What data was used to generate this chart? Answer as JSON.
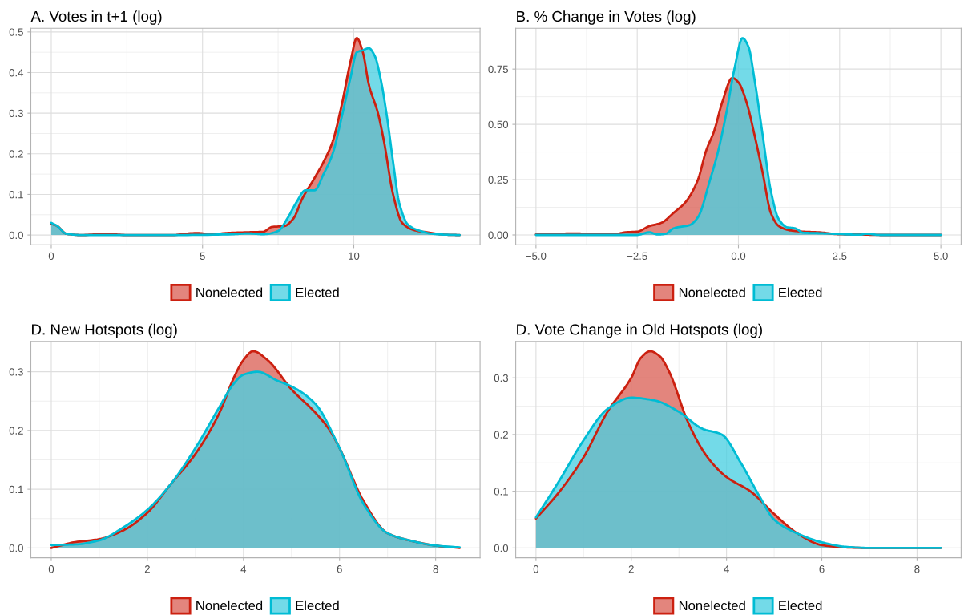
{
  "chart_data": [
    {
      "type": "area",
      "title": "A. Votes in t+1 (log)",
      "xlim": [
        -0.675,
        14.175
      ],
      "xticks": [
        0,
        5,
        10
      ],
      "ylim": [
        -0.024,
        0.509
      ],
      "yticks": [
        {
          "value": 0,
          "label": "0.0"
        },
        0.1,
        0.2,
        0.3,
        0.4,
        0.5
      ],
      "grid": true,
      "legend": "bottom",
      "series": [
        {
          "name": "Nonelected",
          "color": "#cc2010",
          "x": [
            0,
            0.2,
            0.5,
            1,
            1.8,
            2.5,
            4,
            4.8,
            5.3,
            5.8,
            6.5,
            7,
            7.3,
            7.7,
            8,
            8.3,
            8.7,
            9,
            9.3,
            9.6,
            9.9,
            10.1,
            10.3,
            10.5,
            10.8,
            11,
            11.3,
            11.6,
            12,
            12.5,
            13,
            13.5
          ],
          "values": [
            0.028,
            0.022,
            0.003,
            0,
            0.003,
            0,
            0,
            0.005,
            0.002,
            0.005,
            0.007,
            0.008,
            0.02,
            0.022,
            0.04,
            0.09,
            0.14,
            0.18,
            0.23,
            0.32,
            0.43,
            0.485,
            0.45,
            0.37,
            0.3,
            0.23,
            0.1,
            0.03,
            0.012,
            0.006,
            0.001,
            0
          ]
        },
        {
          "name": "Elected",
          "color": "#00bcd4",
          "x": [
            0,
            0.2,
            0.5,
            1,
            4,
            6,
            6.5,
            7,
            7.5,
            7.8,
            8.1,
            8.4,
            8.7,
            9,
            9.3,
            9.6,
            9.9,
            10.1,
            10.3,
            10.5,
            10.7,
            10.9,
            11.1,
            11.3,
            11.5,
            11.8,
            12.2,
            12.6,
            13,
            13.5
          ],
          "values": [
            0.03,
            0.022,
            0.003,
            0,
            0,
            0.002,
            0.004,
            0.002,
            0.01,
            0.04,
            0.08,
            0.11,
            0.11,
            0.15,
            0.2,
            0.29,
            0.39,
            0.45,
            0.455,
            0.46,
            0.44,
            0.38,
            0.29,
            0.18,
            0.08,
            0.025,
            0.01,
            0.003,
            0.001,
            0
          ]
        }
      ]
    },
    {
      "type": "area",
      "title": "B. % Change in Votes (log)",
      "xlim": [
        -5.5,
        5.5
      ],
      "xticks": [
        {
          "value": -5,
          "label": "−5.0"
        },
        {
          "value": -2.5,
          "label": "−2.5"
        },
        {
          "value": 0,
          "label": "0.0"
        },
        {
          "value": 2.5,
          "label": "2.5"
        },
        {
          "value": 5,
          "label": "5.0"
        }
      ],
      "ylim": [
        -0.0445,
        0.9345
      ],
      "yticks": [
        {
          "value": 0,
          "label": "0.00"
        },
        {
          "value": 0.25,
          "label": "0.25"
        },
        {
          "value": 0.5,
          "label": "0.50"
        },
        {
          "value": 0.75,
          "label": "0.75"
        }
      ],
      "grid": true,
      "legend": "bottom",
      "series": [
        {
          "name": "Nonelected",
          "color": "#cc2010",
          "x": [
            -5,
            -4.5,
            -4,
            -3.5,
            -3,
            -2.8,
            -2.5,
            -2.2,
            -1.9,
            -1.6,
            -1.3,
            -1.0,
            -0.8,
            -0.6,
            -0.4,
            -0.15,
            0,
            0.2,
            0.4,
            0.6,
            0.8,
            1.0,
            1.3,
            1.6,
            2,
            2.5,
            3,
            3.5,
            5
          ],
          "values": [
            0.002,
            0.005,
            0.007,
            0.002,
            0.005,
            0.012,
            0.015,
            0.04,
            0.055,
            0.1,
            0.15,
            0.25,
            0.38,
            0.47,
            0.6,
            0.71,
            0.69,
            0.6,
            0.45,
            0.28,
            0.1,
            0.04,
            0.02,
            0.015,
            0.012,
            0.003,
            0.002,
            0,
            0
          ]
        },
        {
          "name": "Elected",
          "color": "#00bcd4",
          "x": [
            -5,
            -2.5,
            -2.2,
            -2,
            -1.8,
            -1.6,
            -1.2,
            -1.0,
            -0.7,
            -0.5,
            -0.3,
            -0.1,
            0.1,
            0.25,
            0.4,
            0.6,
            0.8,
            1.0,
            1.2,
            1.4,
            1.6,
            2,
            2.5,
            3,
            3.15,
            3.5,
            5
          ],
          "values": [
            0,
            0,
            0.012,
            0.002,
            0.005,
            0.03,
            0.045,
            0.08,
            0.25,
            0.38,
            0.55,
            0.75,
            0.89,
            0.85,
            0.7,
            0.45,
            0.2,
            0.07,
            0.035,
            0.03,
            0.01,
            0.008,
            0.004,
            0.001,
            0.005,
            0,
            0
          ]
        }
      ]
    },
    {
      "type": "area",
      "title": "D. New Hotspots (log)",
      "xlim": [
        -0.425,
        8.925
      ],
      "xticks": [
        0,
        2,
        4,
        6,
        8
      ],
      "ylim": [
        -0.0168,
        0.3518
      ],
      "yticks": [
        {
          "value": 0,
          "label": "0.0"
        },
        0.1,
        0.2,
        0.3
      ],
      "grid": true,
      "legend": "bottom",
      "series": [
        {
          "name": "Nonelected",
          "color": "#cc2010",
          "x": [
            0,
            0.5,
            1,
            1.5,
            2,
            2.5,
            3,
            3.5,
            3.8,
            4,
            4.2,
            4.5,
            5,
            5.5,
            5.8,
            6,
            6.5,
            7,
            7.5,
            8,
            8.5
          ],
          "values": [
            0,
            0.01,
            0.015,
            0.03,
            0.06,
            0.11,
            0.16,
            0.23,
            0.29,
            0.32,
            0.335,
            0.32,
            0.27,
            0.23,
            0.2,
            0.17,
            0.08,
            0.025,
            0.012,
            0.004,
            0
          ]
        },
        {
          "name": "Elected",
          "color": "#00bcd4",
          "x": [
            0,
            0.5,
            1,
            1.5,
            2,
            2.5,
            3,
            3.5,
            3.8,
            4,
            4.3,
            4.7,
            5,
            5.5,
            6,
            6.5,
            7,
            7.5,
            8,
            8.5
          ],
          "values": [
            0.005,
            0.006,
            0.013,
            0.035,
            0.065,
            0.11,
            0.17,
            0.24,
            0.28,
            0.295,
            0.3,
            0.285,
            0.275,
            0.245,
            0.17,
            0.075,
            0.025,
            0.012,
            0.004,
            0.001
          ]
        }
      ]
    },
    {
      "type": "area",
      "title": "D. Vote Change in Old Hotspots (log)",
      "xlim": [
        -0.425,
        8.925
      ],
      "xticks": [
        0,
        2,
        4,
        6,
        8
      ],
      "ylim": [
        -0.0174,
        0.3644
      ],
      "yticks": [
        {
          "value": 0,
          "label": "0.0"
        },
        0.1,
        0.2,
        0.3
      ],
      "grid": true,
      "legend": "bottom",
      "series": [
        {
          "name": "Nonelected",
          "color": "#cc2010",
          "x": [
            0,
            0.5,
            1,
            1.5,
            2,
            2.2,
            2.4,
            2.6,
            2.8,
            3.2,
            3.6,
            4,
            4.5,
            5,
            5.5,
            6,
            6.5,
            7,
            8.5
          ],
          "values": [
            0.052,
            0.1,
            0.16,
            0.24,
            0.3,
            0.335,
            0.347,
            0.338,
            0.31,
            0.22,
            0.16,
            0.125,
            0.1,
            0.06,
            0.025,
            0.005,
            0.001,
            0,
            0
          ]
        },
        {
          "name": "Elected",
          "color": "#00bcd4",
          "x": [
            0,
            0.5,
            1,
            1.5,
            2,
            2.5,
            3,
            3.5,
            3.9,
            4.3,
            4.7,
            5,
            5.5,
            6,
            6.5,
            7,
            8.5
          ],
          "values": [
            0.054,
            0.12,
            0.19,
            0.245,
            0.265,
            0.26,
            0.24,
            0.21,
            0.2,
            0.15,
            0.09,
            0.05,
            0.025,
            0.01,
            0.002,
            0,
            0
          ]
        }
      ]
    }
  ]
}
